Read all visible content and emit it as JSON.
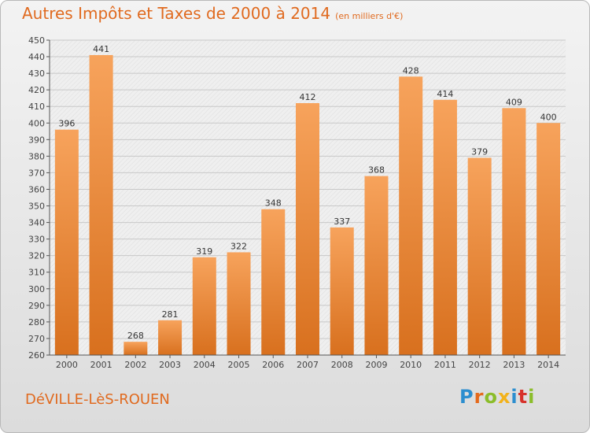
{
  "title": "Autres Impôts et Taxes de 2000 à 2014",
  "unit": "(en milliers d'€)",
  "commune": "DéVILLE-LèS-ROUEN",
  "logo": [
    "P",
    "r",
    "o",
    "x",
    "i",
    "t",
    "i"
  ],
  "colors": {
    "title": "#e06a1f",
    "bar_top": "#f7a35c",
    "bar_bottom": "#d8701e"
  },
  "chart_data": {
    "type": "bar",
    "title": "Autres Impôts et Taxes de 2000 à 2014",
    "subtitle": "(en milliers d'€)",
    "categories": [
      "2000",
      "2001",
      "2002",
      "2003",
      "2004",
      "2005",
      "2006",
      "2007",
      "2008",
      "2009",
      "2010",
      "2011",
      "2012",
      "2013",
      "2014"
    ],
    "values": [
      396,
      441,
      268,
      281,
      319,
      322,
      348,
      412,
      337,
      368,
      428,
      414,
      379,
      409,
      400
    ],
    "ylim": [
      260,
      450
    ],
    "ytick_step": 10,
    "grid": true,
    "data_labels": true
  }
}
